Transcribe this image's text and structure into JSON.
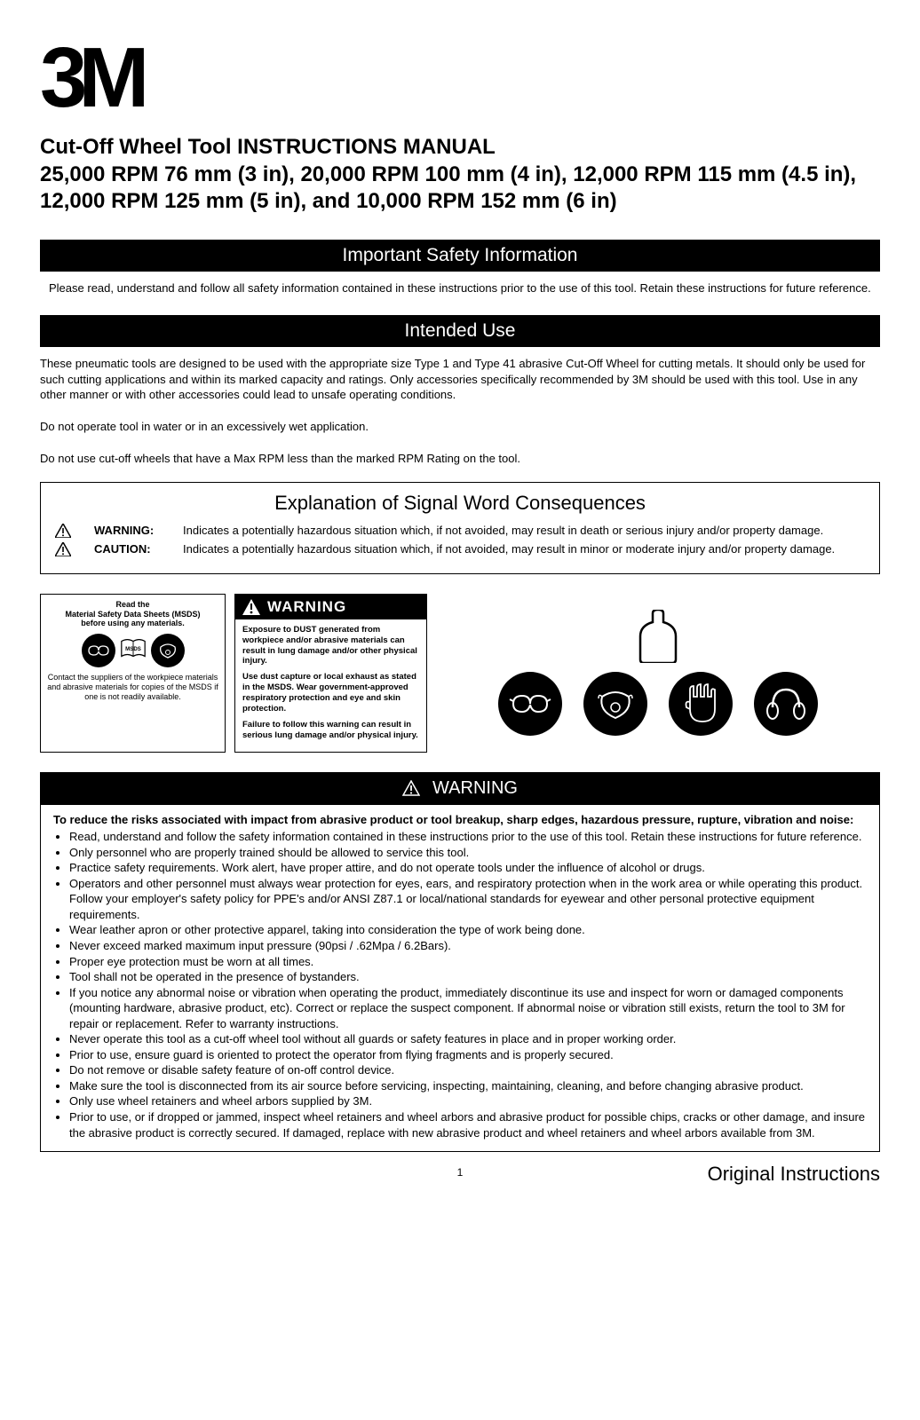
{
  "logo_text": "3M",
  "title_line1": "Cut-Off Wheel Tool INSTRUCTIONS MANUAL",
  "title_line2": "25,000 RPM 76 mm (3 in), 20,000 RPM 100 mm (4 in), 12,000 RPM 115 mm (4.5 in), 12,000 RPM 125 mm (5 in), and 10,000 RPM 152 mm (6 in)",
  "sections": {
    "safety_header": "Important Safety Information",
    "safety_intro": "Please read, understand and follow all safety information contained in these instructions prior to the use of this tool. Retain these instructions for future reference.",
    "intended_header": "Intended Use",
    "intended_p1": "These pneumatic tools are designed to be used with the appropriate size Type 1 and Type 41 abrasive Cut-Off Wheel for cutting metals. It should only be used for such cutting applications and within its marked capacity and ratings. Only accessories specifically recommended by 3M should be used with this tool. Use in any other manner or with other accessories could lead to unsafe operating conditions.",
    "intended_p2": "Do not operate tool in water or in an excessively wet application.",
    "intended_p3": "Do not use cut-off wheels that have a Max RPM less than the marked RPM Rating on the tool."
  },
  "signal": {
    "title": "Explanation of Signal Word Consequences",
    "rows": [
      {
        "label": "WARNING:",
        "desc": "Indicates a potentially hazardous situation which, if not avoided, may result in death or serious injury and/or property damage."
      },
      {
        "label": "CAUTION:",
        "desc": "Indicates a potentially hazardous situation which, if not avoided, may result in minor or moderate injury and/or property damage."
      }
    ]
  },
  "msds": {
    "top": "Read the\nMaterial Safety Data Sheets (MSDS)\nbefore using any materials.",
    "book_label": "MSDS",
    "bottom": "Contact the suppliers of the workpiece materials and abrasive materials for copies of the MSDS if one is not readily available."
  },
  "dust": {
    "header": "WARNING",
    "p1_a": "Exposure to ",
    "p1_b": "DUST",
    "p1_c": " generated from workpiece and/or abrasive materials can result in lung damage and/or other physical injury.",
    "p2": "Use dust capture or local exhaust as stated in the MSDS. Wear government-approved respiratory protection and eye and skin protection.",
    "p3": "Failure to follow this warning can result in serious lung damage and/or physical injury."
  },
  "ppe_icons": [
    "apron",
    "goggles",
    "mask",
    "gloves",
    "earmuffs"
  ],
  "warning_block": {
    "header": "WARNING",
    "intro": "To reduce the risks associated with impact from abrasive product or tool breakup, sharp edges, hazardous pressure, rupture, vibration and noise:",
    "items": [
      "Read, understand and follow the safety information contained in these instructions prior to the use of this tool. Retain these instructions for future reference.",
      "Only personnel who are properly trained should be allowed to service this tool.",
      "Practice safety requirements. Work alert, have proper attire, and do not operate tools under the influence of alcohol or drugs.",
      "Operators and other personnel must always wear protection for eyes, ears, and respiratory protection when in the work area or while operating this product. Follow your employer's safety policy for PPE's and/or ANSI Z87.1 or local/national standards for eyewear and other personal protective equipment requirements.",
      "Wear leather apron or other protective apparel, taking into consideration the type of work being done.",
      "Never exceed marked maximum input pressure (90psi / .62Mpa / 6.2Bars).",
      "Proper eye protection must be worn at all times.",
      "Tool shall not be operated in the presence of bystanders.",
      "If you notice any abnormal noise or vibration when operating the product, immediately discontinue its use and inspect for worn or damaged components (mounting hardware, abrasive product, etc). Correct or replace the suspect component. If abnormal noise or vibration still exists, return the tool to 3M for repair or replacement. Refer to warranty instructions.",
      "Never operate this tool as a cut-off wheel tool without all guards or safety features in place and in proper working order.",
      "Prior to use, ensure guard is oriented to protect the operator from flying fragments and is properly secured.",
      "Do not remove or disable safety feature of on-off control device.",
      "Make sure the tool is disconnected from its air source before servicing, inspecting, maintaining, cleaning, and before changing abrasive product.",
      "Only use wheel retainers and wheel arbors supplied by 3M.",
      "Prior to use, or if dropped or jammed, inspect wheel retainers and wheel arbors and abrasive product for possible chips, cracks or other damage, and insure the abrasive product is correctly secured. If damaged, replace with new abrasive product and wheel retainers and wheel arbors available from 3M."
    ]
  },
  "footer": {
    "page": "1",
    "right": "Original Instructions"
  },
  "colors": {
    "black": "#000000",
    "white": "#ffffff"
  }
}
